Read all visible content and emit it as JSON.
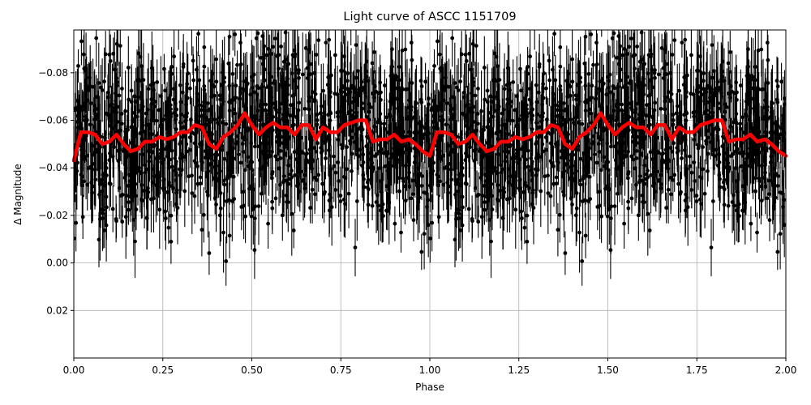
{
  "chart_data": {
    "type": "scatter",
    "title": "Light curve of ASCC 1151709",
    "xlabel": "Phase",
    "ylabel": "Δ Magnitude",
    "xlim": [
      0.0,
      2.0
    ],
    "ylim": [
      0.04,
      -0.098
    ],
    "y_inverted": true,
    "grid": true,
    "xticks": [
      "0.00",
      "0.25",
      "0.50",
      "0.75",
      "1.00",
      "1.25",
      "1.50",
      "1.75",
      "2.00"
    ],
    "xtick_values": [
      0.0,
      0.25,
      0.5,
      0.75,
      1.0,
      1.25,
      1.5,
      1.75,
      2.0
    ],
    "yticks": [
      "−0.08",
      "−0.06",
      "−0.04",
      "−0.02",
      "0.00",
      "0.02"
    ],
    "ytick_values": [
      -0.08,
      -0.06,
      -0.04,
      -0.02,
      0.0,
      0.02
    ],
    "series": [
      {
        "name": "observations",
        "style": "black points with vertical error bars",
        "color": "#000000",
        "note": "dense scatter spanning roughly -0.10 to +0.04 across all phases, phase-folded and repeated over 0-2"
      },
      {
        "name": "binned mean",
        "style": "thick red line",
        "color": "#ff0000",
        "x": [
          0.0,
          0.02,
          0.04,
          0.06,
          0.08,
          0.1,
          0.12,
          0.14,
          0.16,
          0.18,
          0.2,
          0.22,
          0.24,
          0.26,
          0.28,
          0.3,
          0.32,
          0.34,
          0.36,
          0.38,
          0.4,
          0.42,
          0.44,
          0.46,
          0.48,
          0.5,
          0.52,
          0.54,
          0.56,
          0.58,
          0.6,
          0.62,
          0.64,
          0.66,
          0.68,
          0.7,
          0.72,
          0.74,
          0.76,
          0.78,
          0.8,
          0.82,
          0.84,
          0.86,
          0.88,
          0.9,
          0.92,
          0.94,
          0.96,
          0.98,
          1.0
        ],
        "y": [
          -0.043,
          -0.055,
          -0.055,
          -0.054,
          -0.05,
          -0.051,
          -0.054,
          -0.05,
          -0.047,
          -0.048,
          -0.051,
          -0.051,
          -0.053,
          -0.052,
          -0.053,
          -0.055,
          -0.055,
          -0.058,
          -0.057,
          -0.05,
          -0.048,
          -0.053,
          -0.055,
          -0.058,
          -0.063,
          -0.058,
          -0.054,
          -0.057,
          -0.059,
          -0.057,
          -0.057,
          -0.054,
          -0.058,
          -0.058,
          -0.052,
          -0.057,
          -0.055,
          -0.055,
          -0.058,
          -0.059,
          -0.06,
          -0.06,
          -0.051,
          -0.052,
          -0.052,
          -0.054,
          -0.051,
          -0.052,
          -0.05,
          -0.047,
          -0.045
        ],
        "repeats": "pattern repeats for phase 1.0-2.0"
      }
    ]
  }
}
